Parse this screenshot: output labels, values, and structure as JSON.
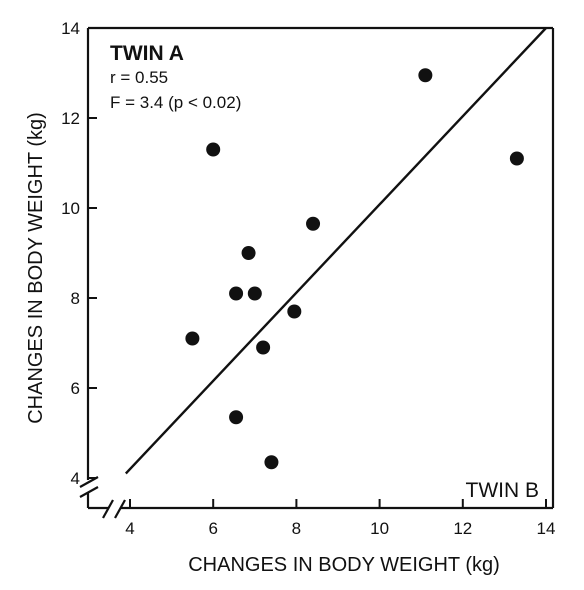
{
  "chart_data": {
    "type": "scatter",
    "xlabel": "CHANGES IN BODY WEIGHT (kg)",
    "ylabel": "CHANGES IN BODY WEIGHT (kg)",
    "xlim": [
      4,
      14
    ],
    "ylim": [
      4,
      14
    ],
    "x_ticks": [
      "4",
      "6",
      "8",
      "10",
      "12",
      "14"
    ],
    "y_ticks": [
      "4",
      "6",
      "8",
      "10",
      "12",
      "14"
    ],
    "grid": false,
    "axis_breaks": true,
    "annotations": {
      "y_series_label": "TWIN A",
      "r_text": "r = 0.55",
      "f_text": "F = 3.4 (p < 0.02)",
      "x_series_label": "TWIN B"
    },
    "points": [
      {
        "x": 5.5,
        "y": 7.1
      },
      {
        "x": 6.0,
        "y": 11.3
      },
      {
        "x": 6.55,
        "y": 8.1
      },
      {
        "x": 6.55,
        "y": 5.35
      },
      {
        "x": 6.85,
        "y": 9.0
      },
      {
        "x": 7.0,
        "y": 8.1
      },
      {
        "x": 7.2,
        "y": 6.9
      },
      {
        "x": 7.4,
        "y": 4.35
      },
      {
        "x": 7.95,
        "y": 7.7
      },
      {
        "x": 8.4,
        "y": 9.65
      },
      {
        "x": 11.1,
        "y": 12.95
      },
      {
        "x": 13.3,
        "y": 11.1
      }
    ],
    "regression_line": {
      "x": [
        3.9,
        14.0
      ],
      "y": [
        4.1,
        14.0
      ]
    }
  }
}
